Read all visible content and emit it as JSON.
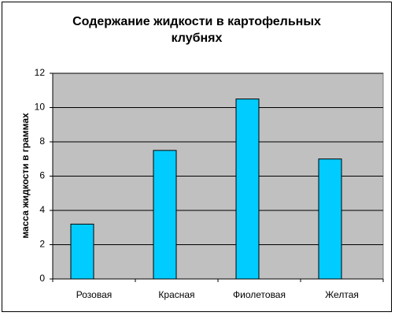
{
  "chart_data": {
    "type": "bar",
    "title": "Содержание жидкости в картофельных клубнях",
    "ylabel": "масса жидкости в граммах",
    "categories": [
      "Розовая",
      "Красная",
      "Фиолетовая",
      "Желтая"
    ],
    "values": [
      3.2,
      7.5,
      10.5,
      7.0
    ],
    "color": "#00ccff",
    "ylim": [
      0,
      12
    ],
    "yticks": [
      0,
      2,
      4,
      6,
      8,
      10,
      12
    ],
    "grid": true
  }
}
